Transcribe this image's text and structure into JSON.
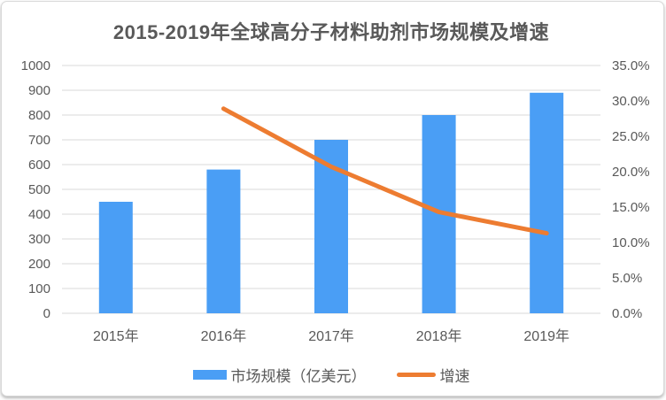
{
  "chart_data": {
    "type": "bar",
    "title": "2015-2019年全球高分子材料助剂市场规模及增速",
    "categories": [
      "2015年",
      "2016年",
      "2017年",
      "2018年",
      "2019年"
    ],
    "series": [
      {
        "name": "市场规模（亿美元）",
        "type": "bar",
        "axis": "left",
        "color": "#4A9EF5",
        "values": [
          450,
          580,
          700,
          800,
          890
        ]
      },
      {
        "name": "增速",
        "type": "line",
        "axis": "right",
        "color": "#ED7C31",
        "unit": "%",
        "values": [
          null,
          28.9,
          20.7,
          14.3,
          11.3
        ]
      }
    ],
    "left_axis": {
      "min": 0,
      "max": 1000,
      "step": 100,
      "tick_labels": [
        "0",
        "100",
        "200",
        "300",
        "400",
        "500",
        "600",
        "700",
        "800",
        "900",
        "1000"
      ]
    },
    "right_axis": {
      "min": 0,
      "max": 35,
      "step": 5,
      "tick_labels": [
        "0.0%",
        "5.0%",
        "10.0%",
        "15.0%",
        "20.0%",
        "25.0%",
        "30.0%",
        "35.0%"
      ]
    },
    "grid": true,
    "legend_position": "bottom"
  },
  "colors": {
    "grid": "#d9d9d9",
    "axis_text": "#595959",
    "title_text": "#595959",
    "bar": "#4A9EF5",
    "line": "#ED7C31"
  }
}
